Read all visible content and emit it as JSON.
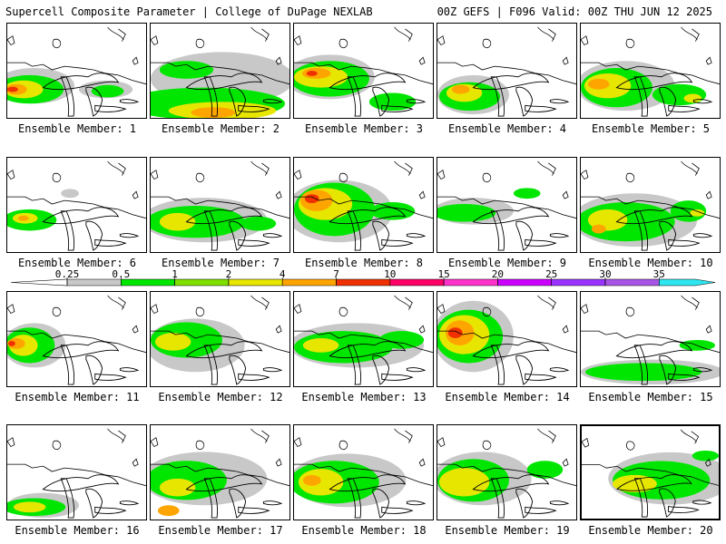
{
  "header": {
    "title": "Supercell Composite Parameter | College of DuPage NEXLAB",
    "run_info": "00Z GEFS | F096 Valid: 00Z THU JUN 12 2025"
  },
  "colorbar": {
    "ticks": [
      "0.25",
      "0.5",
      "1",
      "2",
      "4",
      "7",
      "10",
      "15",
      "20",
      "25",
      "30",
      "35"
    ],
    "colors": [
      "#c8c8c8",
      "#00e600",
      "#7ee000",
      "#e6e600",
      "#ffa500",
      "#f03000",
      "#ff0066",
      "#ff33cc",
      "#cc00ff",
      "#9933ff",
      "#a855e6",
      "#2ee6f0"
    ]
  },
  "panels": [
    {
      "label": "Ensemble Member: 1"
    },
    {
      "label": "Ensemble Member: 2"
    },
    {
      "label": "Ensemble Member: 3"
    },
    {
      "label": "Ensemble Member: 4"
    },
    {
      "label": "Ensemble Member: 5"
    },
    {
      "label": "Ensemble Member: 6"
    },
    {
      "label": "Ensemble Member: 7"
    },
    {
      "label": "Ensemble Member: 8"
    },
    {
      "label": "Ensemble Member: 9"
    },
    {
      "label": "Ensemble Member: 10"
    },
    {
      "label": "Ensemble Member: 11"
    },
    {
      "label": "Ensemble Member: 12"
    },
    {
      "label": "Ensemble Member: 13"
    },
    {
      "label": "Ensemble Member: 14"
    },
    {
      "label": "Ensemble Member: 15"
    },
    {
      "label": "Ensemble Member: 16"
    },
    {
      "label": "Ensemble Member: 17"
    },
    {
      "label": "Ensemble Member: 18"
    },
    {
      "label": "Ensemble Member: 19"
    },
    {
      "label": "Ensemble Member: 20",
      "selected": true
    }
  ]
}
